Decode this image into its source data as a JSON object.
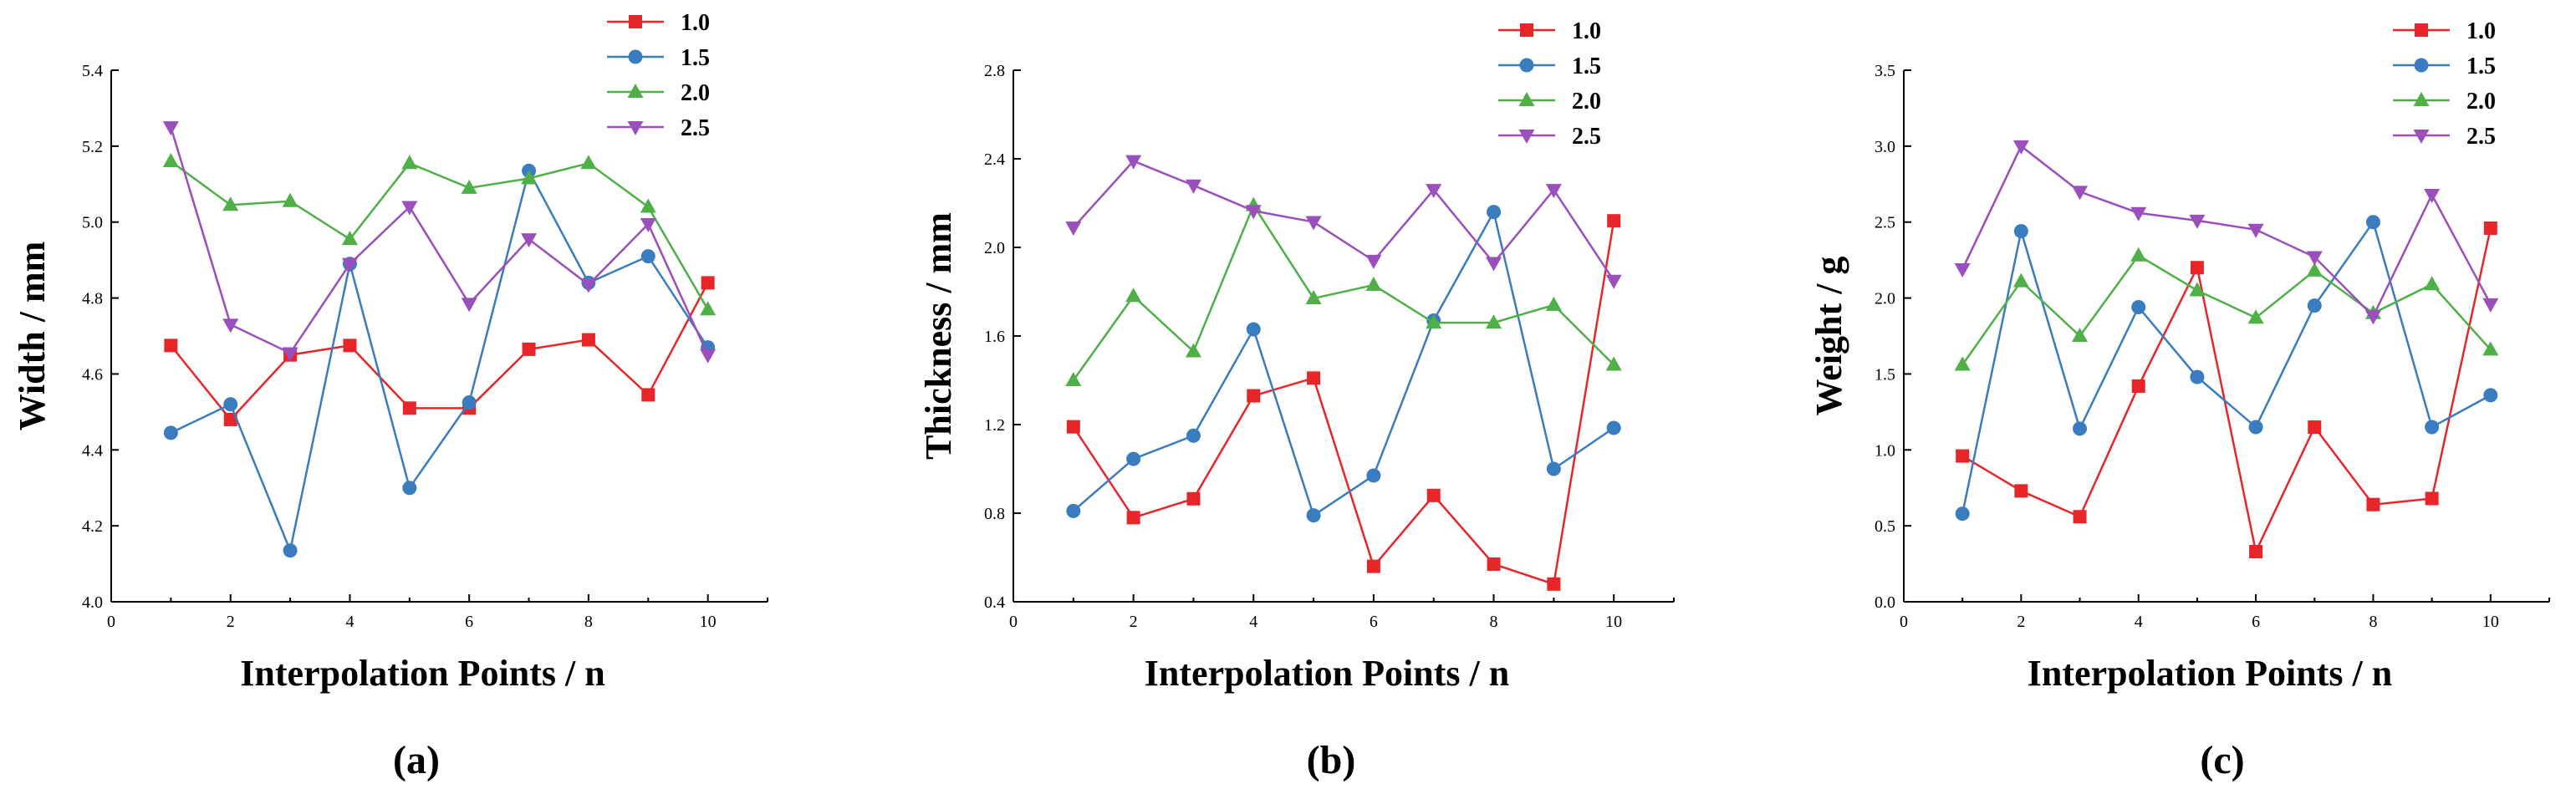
{
  "chart_data": [
    {
      "type": "line",
      "panel_label": "(a)",
      "title": "",
      "xlabel": "Interpolation Points / n",
      "ylabel": "Width / mm",
      "xlim": [
        0,
        11
      ],
      "xticks": [
        0,
        2,
        4,
        6,
        8,
        10
      ],
      "ylim": [
        4.0,
        5.4
      ],
      "yticks": [
        "4.0",
        "4.2",
        "4.4",
        "4.6",
        "4.8",
        "5.0",
        "5.2",
        "5.4"
      ],
      "grid": false,
      "legend_position": "top-right",
      "x": [
        1,
        2,
        3,
        4,
        5,
        6,
        7,
        8,
        9,
        10
      ],
      "series": [
        {
          "name": "1.0",
          "color": "#e8262a",
          "marker": "square",
          "values": [
            4.675,
            4.48,
            4.65,
            4.675,
            4.51,
            4.51,
            4.665,
            4.69,
            4.545,
            4.84
          ]
        },
        {
          "name": "1.5",
          "color": "#3a7cc0",
          "marker": "circle",
          "values": [
            4.445,
            4.52,
            4.135,
            4.89,
            4.3,
            4.525,
            5.135,
            4.84,
            4.91,
            4.67
          ]
        },
        {
          "name": "2.0",
          "color": "#4fb047",
          "marker": "triangle-up",
          "values": [
            5.16,
            5.045,
            5.055,
            4.955,
            5.155,
            5.09,
            5.115,
            5.155,
            5.04,
            4.77
          ]
        },
        {
          "name": "2.5",
          "color": "#9b4fbc",
          "marker": "triangle-down",
          "values": [
            5.25,
            4.73,
            4.655,
            4.89,
            5.04,
            4.785,
            4.955,
            4.835,
            4.995,
            4.65
          ]
        }
      ]
    },
    {
      "type": "line",
      "panel_label": "(b)",
      "title": "",
      "xlabel": "Interpolation Points / n",
      "ylabel": "Thickness / mm",
      "xlim": [
        0,
        11
      ],
      "xticks": [
        0,
        2,
        4,
        6,
        8,
        10
      ],
      "ylim": [
        0.4,
        2.8
      ],
      "yticks": [
        "0.4",
        "0.8",
        "1.2",
        "1.6",
        "2.0",
        "2.4",
        "2.8"
      ],
      "grid": false,
      "legend_position": "top-right",
      "x": [
        1,
        2,
        3,
        4,
        5,
        6,
        7,
        8,
        9,
        10
      ],
      "series": [
        {
          "name": "1.0",
          "color": "#e8262a",
          "marker": "square",
          "values": [
            1.19,
            0.78,
            0.865,
            1.33,
            1.41,
            0.56,
            0.88,
            0.57,
            0.48,
            2.12
          ]
        },
        {
          "name": "1.5",
          "color": "#3a7cc0",
          "marker": "circle",
          "values": [
            0.81,
            1.045,
            1.15,
            1.63,
            0.79,
            0.97,
            1.67,
            2.16,
            1.0,
            1.185
          ]
        },
        {
          "name": "2.0",
          "color": "#4fb047",
          "marker": "triangle-up",
          "values": [
            1.4,
            1.78,
            1.53,
            2.19,
            1.77,
            1.83,
            1.66,
            1.66,
            1.74,
            1.47
          ]
        },
        {
          "name": "2.5",
          "color": "#9b4fbc",
          "marker": "triangle-down",
          "values": [
            2.09,
            2.39,
            2.28,
            2.165,
            2.115,
            1.94,
            2.26,
            1.93,
            2.26,
            1.85
          ]
        }
      ]
    },
    {
      "type": "line",
      "panel_label": "(c)",
      "title": "",
      "xlabel": "Interpolation Points / n",
      "ylabel": "Weight / g",
      "xlim": [
        0,
        11
      ],
      "xticks": [
        0,
        2,
        4,
        6,
        8,
        10
      ],
      "ylim": [
        0.0,
        3.5
      ],
      "yticks": [
        "0.0",
        "0.5",
        "1.0",
        "1.5",
        "2.0",
        "2.5",
        "3.0",
        "3.5"
      ],
      "grid": false,
      "legend_position": "top-right",
      "x": [
        1,
        2,
        3,
        4,
        5,
        6,
        7,
        8,
        9,
        10
      ],
      "series": [
        {
          "name": "1.0",
          "color": "#e8262a",
          "marker": "square",
          "values": [
            0.96,
            0.73,
            0.56,
            1.42,
            2.2,
            0.33,
            1.15,
            0.64,
            0.68,
            2.46
          ]
        },
        {
          "name": "1.5",
          "color": "#3a7cc0",
          "marker": "circle",
          "values": [
            0.58,
            2.44,
            1.14,
            1.94,
            1.48,
            1.15,
            1.95,
            2.5,
            1.15,
            1.36
          ]
        },
        {
          "name": "2.0",
          "color": "#4fb047",
          "marker": "triangle-up",
          "values": [
            1.56,
            2.11,
            1.75,
            2.28,
            2.05,
            1.87,
            2.18,
            1.9,
            2.09,
            1.66
          ]
        },
        {
          "name": "2.5",
          "color": "#9b4fbc",
          "marker": "triangle-down",
          "values": [
            2.19,
            3.0,
            2.7,
            2.56,
            2.51,
            2.45,
            2.27,
            1.88,
            2.68,
            1.96
          ]
        }
      ]
    }
  ]
}
